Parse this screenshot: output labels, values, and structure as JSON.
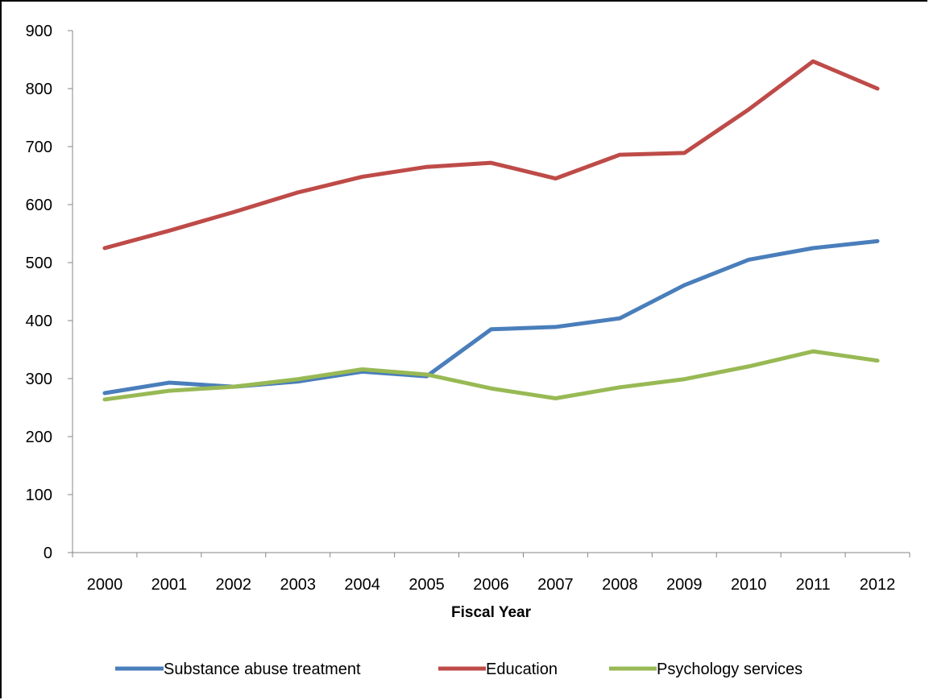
{
  "chart_data": {
    "type": "line",
    "title": "",
    "xlabel": "Fiscal Year",
    "ylabel": "",
    "ylim": [
      0,
      900
    ],
    "yticks": [
      0,
      100,
      200,
      300,
      400,
      500,
      600,
      700,
      800,
      900
    ],
    "categories": [
      "2000",
      "2001",
      "2002",
      "2003",
      "2004",
      "2005",
      "2006",
      "2007",
      "2008",
      "2009",
      "2010",
      "2011",
      "2012"
    ],
    "grid": false,
    "legend_position": "bottom",
    "series": [
      {
        "name": "Substance abuse treatment",
        "color": "#4a7ebb",
        "values": [
          275,
          293,
          286,
          295,
          312,
          304,
          385,
          389,
          404,
          461,
          505,
          525,
          537
        ]
      },
      {
        "name": "Education",
        "color": "#be4b48",
        "values": [
          525,
          555,
          587,
          621,
          648,
          665,
          672,
          645,
          686,
          689,
          764,
          847,
          800
        ]
      },
      {
        "name": "Psychology services",
        "color": "#98b954",
        "values": [
          264,
          279,
          286,
          299,
          316,
          307,
          283,
          266,
          285,
          299,
          321,
          347,
          331
        ]
      }
    ]
  }
}
